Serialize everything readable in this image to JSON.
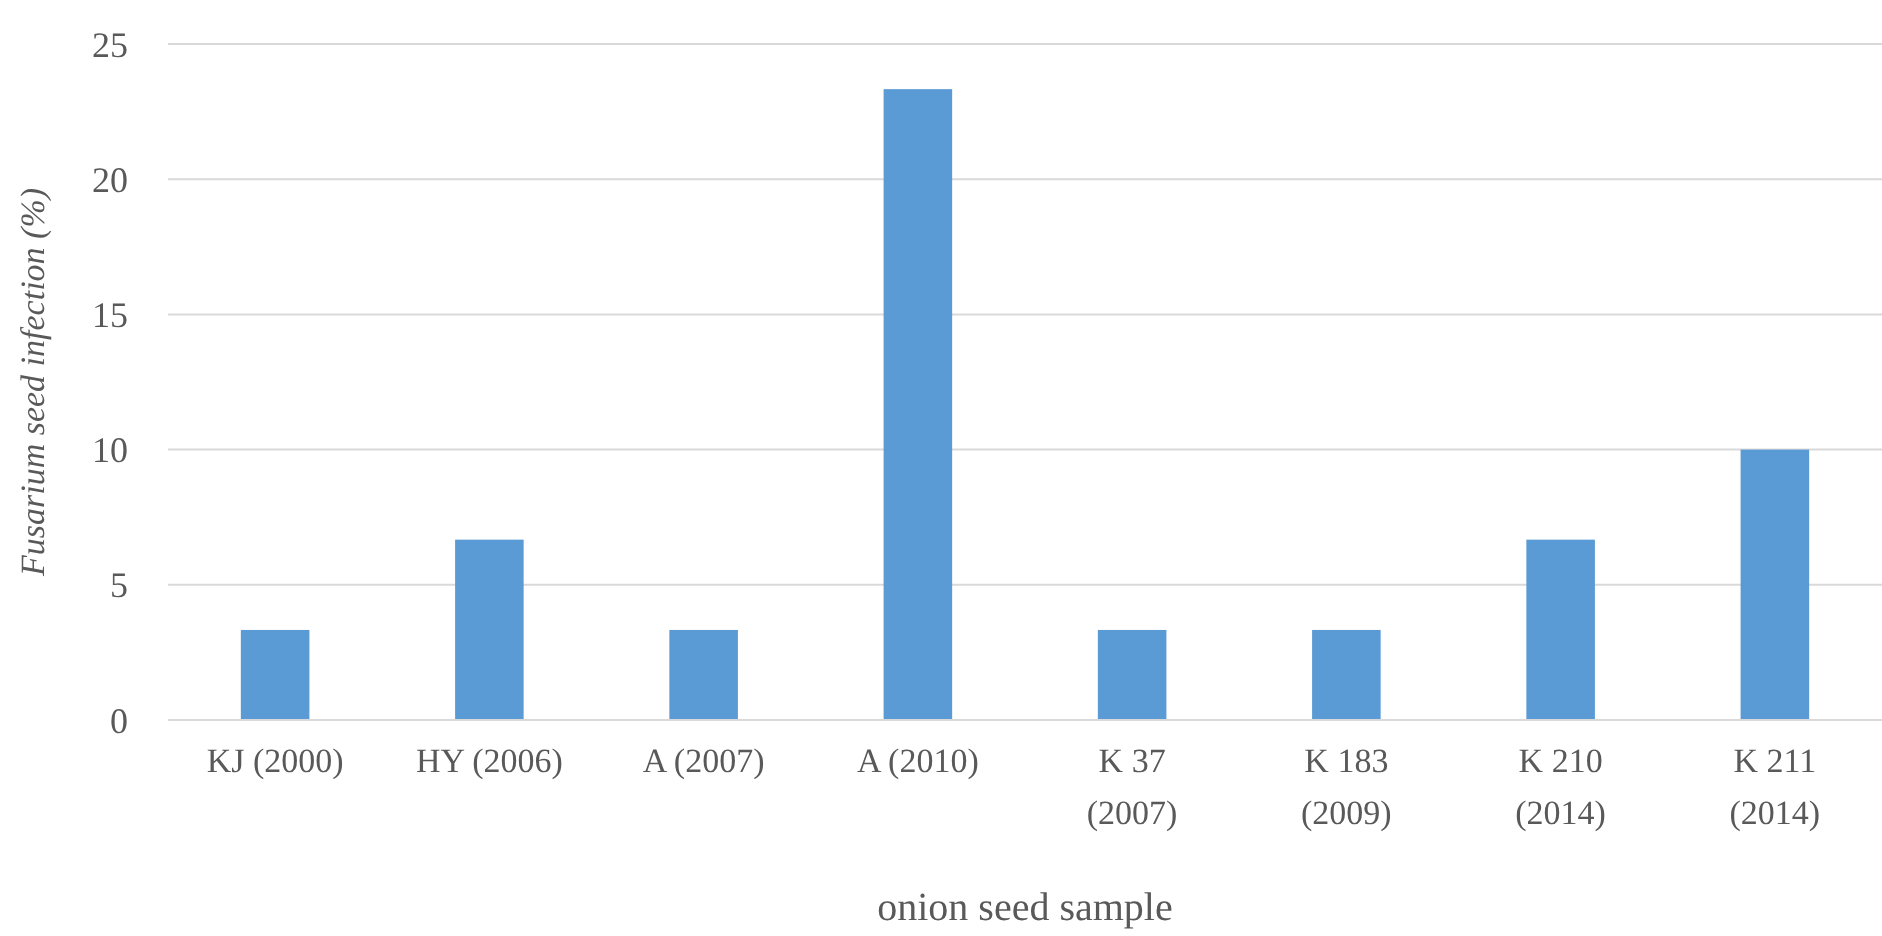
{
  "chart_data": {
    "type": "bar",
    "xlabel": "onion seed sample",
    "ylabel": "Fusarium seed infection (%)",
    "categories": [
      "KJ (2000)",
      "HY (2006)",
      "A (2007)",
      "A (2010)",
      "K 37 (2007)",
      "K 183 (2009)",
      "K 210 (2014)",
      "K 211 (2014)"
    ],
    "values": [
      3.33,
      6.67,
      3.33,
      23.33,
      3.33,
      3.33,
      6.67,
      10
    ],
    "color": "#5b9bd5",
    "ylim": [
      0,
      25
    ],
    "yticks": [
      0,
      5,
      10,
      15,
      20,
      25
    ],
    "grid": "y"
  }
}
